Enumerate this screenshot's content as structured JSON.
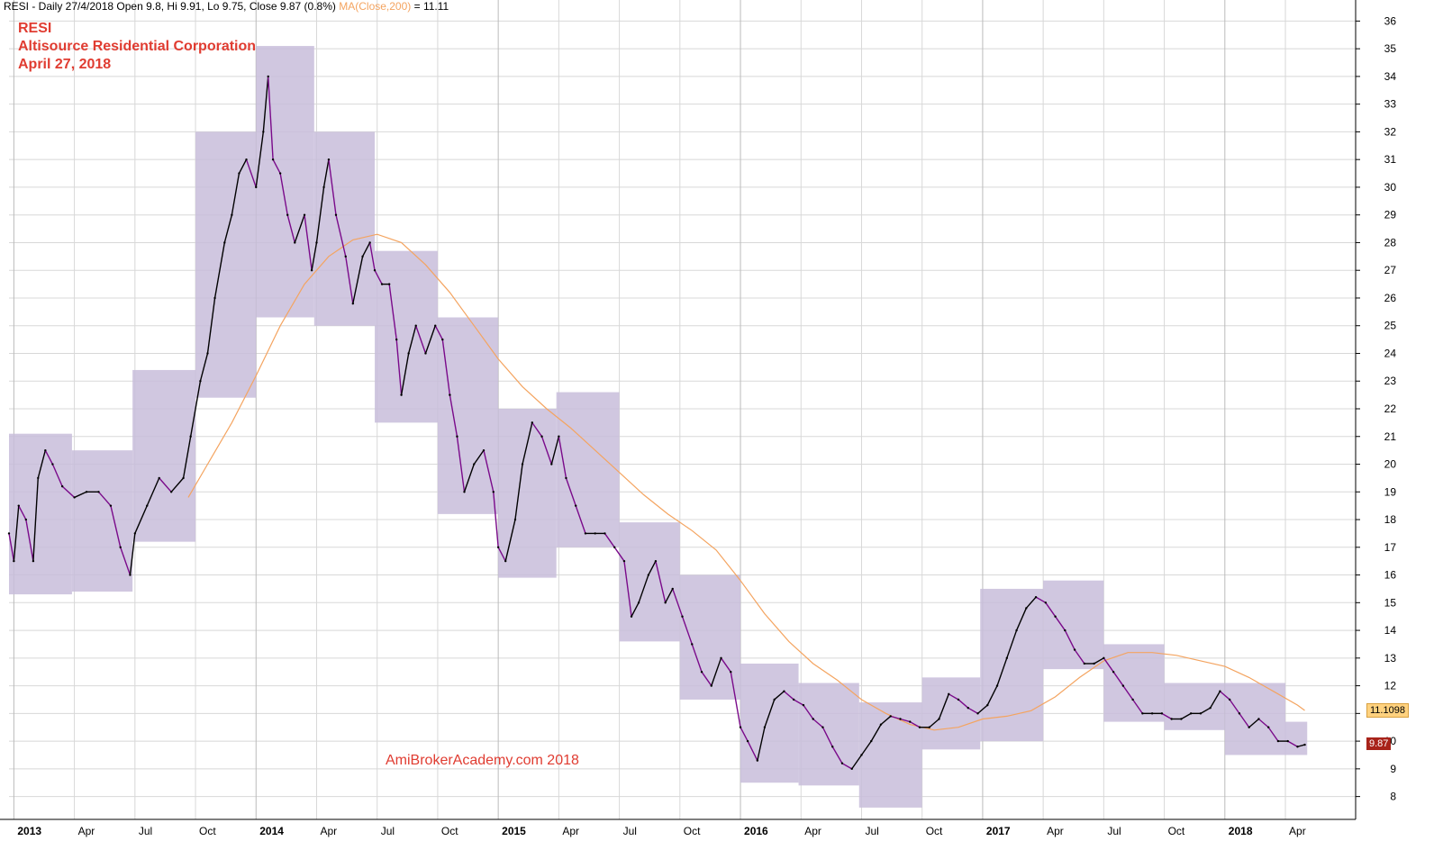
{
  "header": {
    "prefix": "RESI - Daily 27/4/2018 Open 9.8, Hi 9.91, Lo 9.75, Close 9.87 (0.8%)",
    "ma_label": "MA(Close,200)",
    "ma_value": "= 11.11"
  },
  "title": {
    "ticker": "RESI",
    "company": "Altisource Residential Corporation",
    "date": "April 27, 2018"
  },
  "watermark": "AmiBrokerAcademy.com  2018",
  "tags": {
    "ma": "11.1098",
    "close": "9.87"
  },
  "colors": {
    "boxes": "#c8bddb",
    "down_price": "#7a0a8a",
    "up_price": "#000000",
    "ma_line": "#f4a460",
    "grid": "#d8d8d8"
  },
  "chart_data": {
    "type": "line",
    "y_ticks": [
      8,
      9,
      10,
      11,
      12,
      13,
      14,
      15,
      16,
      17,
      18,
      19,
      20,
      21,
      22,
      23,
      24,
      25,
      26,
      27,
      28,
      29,
      30,
      31,
      32,
      33,
      34,
      35,
      36
    ],
    "ylim": [
      7.5,
      36.5
    ],
    "x_labels": [
      {
        "t": 0.0,
        "label": "2013",
        "bold": true
      },
      {
        "t": 0.25,
        "label": "Apr",
        "bold": false
      },
      {
        "t": 0.5,
        "label": "Jul",
        "bold": false
      },
      {
        "t": 0.75,
        "label": "Oct",
        "bold": false
      },
      {
        "t": 1.0,
        "label": "2014",
        "bold": true
      },
      {
        "t": 1.25,
        "label": "Apr",
        "bold": false
      },
      {
        "t": 1.5,
        "label": "Jul",
        "bold": false
      },
      {
        "t": 1.75,
        "label": "Oct",
        "bold": false
      },
      {
        "t": 2.0,
        "label": "2015",
        "bold": true
      },
      {
        "t": 2.25,
        "label": "Apr",
        "bold": false
      },
      {
        "t": 2.5,
        "label": "Jul",
        "bold": false
      },
      {
        "t": 2.75,
        "label": "Oct",
        "bold": false
      },
      {
        "t": 3.0,
        "label": "2016",
        "bold": true
      },
      {
        "t": 3.25,
        "label": "Apr",
        "bold": false
      },
      {
        "t": 3.5,
        "label": "Jul",
        "bold": false
      },
      {
        "t": 3.75,
        "label": "Oct",
        "bold": false
      },
      {
        "t": 4.0,
        "label": "2017",
        "bold": true
      },
      {
        "t": 4.25,
        "label": "Apr",
        "bold": false
      },
      {
        "t": 4.5,
        "label": "Jul",
        "bold": false
      },
      {
        "t": 4.75,
        "label": "Oct",
        "bold": false
      },
      {
        "t": 5.0,
        "label": "2018",
        "bold": true
      },
      {
        "t": 5.25,
        "label": "Apr",
        "bold": false
      }
    ],
    "boxes": [
      {
        "t0": -0.02,
        "t1": 0.24,
        "lo": 15.3,
        "hi": 21.1
      },
      {
        "t0": 0.24,
        "t1": 0.49,
        "lo": 15.4,
        "hi": 20.5
      },
      {
        "t0": 0.49,
        "t1": 0.75,
        "lo": 17.2,
        "hi": 23.4
      },
      {
        "t0": 0.75,
        "t1": 1.0,
        "lo": 22.4,
        "hi": 32.0
      },
      {
        "t0": 1.0,
        "t1": 1.24,
        "lo": 25.3,
        "hi": 35.1
      },
      {
        "t0": 1.24,
        "t1": 1.49,
        "lo": 25.0,
        "hi": 32.0
      },
      {
        "t0": 1.49,
        "t1": 1.75,
        "lo": 21.5,
        "hi": 27.7
      },
      {
        "t0": 1.75,
        "t1": 2.0,
        "lo": 18.2,
        "hi": 25.3
      },
      {
        "t0": 2.0,
        "t1": 2.24,
        "lo": 15.9,
        "hi": 22.0
      },
      {
        "t0": 2.24,
        "t1": 2.5,
        "lo": 17.0,
        "hi": 22.6
      },
      {
        "t0": 2.5,
        "t1": 2.75,
        "lo": 13.6,
        "hi": 17.9
      },
      {
        "t0": 2.75,
        "t1": 3.0,
        "lo": 11.5,
        "hi": 16.0
      },
      {
        "t0": 3.0,
        "t1": 3.24,
        "lo": 8.5,
        "hi": 12.8
      },
      {
        "t0": 3.24,
        "t1": 3.49,
        "lo": 8.4,
        "hi": 12.1
      },
      {
        "t0": 3.49,
        "t1": 3.75,
        "lo": 7.6,
        "hi": 11.4
      },
      {
        "t0": 3.75,
        "t1": 3.99,
        "lo": 9.7,
        "hi": 12.3
      },
      {
        "t0": 3.99,
        "t1": 4.25,
        "lo": 10.0,
        "hi": 15.5
      },
      {
        "t0": 4.25,
        "t1": 4.5,
        "lo": 12.6,
        "hi": 15.8
      },
      {
        "t0": 4.5,
        "t1": 4.75,
        "lo": 10.7,
        "hi": 13.5
      },
      {
        "t0": 4.75,
        "t1": 5.0,
        "lo": 10.4,
        "hi": 12.1
      },
      {
        "t0": 5.0,
        "t1": 5.25,
        "lo": 9.5,
        "hi": 12.1
      },
      {
        "t0": 5.25,
        "t1": 5.34,
        "lo": 9.5,
        "hi": 10.7
      }
    ],
    "price": [
      [
        -0.02,
        17.5
      ],
      [
        0.0,
        16.5
      ],
      [
        0.02,
        18.5
      ],
      [
        0.05,
        18.0
      ],
      [
        0.08,
        16.5
      ],
      [
        0.1,
        19.5
      ],
      [
        0.13,
        20.5
      ],
      [
        0.16,
        20.0
      ],
      [
        0.2,
        19.2
      ],
      [
        0.25,
        18.8
      ],
      [
        0.3,
        19.0
      ],
      [
        0.35,
        19.0
      ],
      [
        0.4,
        18.5
      ],
      [
        0.44,
        17.0
      ],
      [
        0.48,
        16.0
      ],
      [
        0.5,
        17.5
      ],
      [
        0.55,
        18.5
      ],
      [
        0.6,
        19.5
      ],
      [
        0.65,
        19.0
      ],
      [
        0.7,
        19.5
      ],
      [
        0.73,
        21.0
      ],
      [
        0.77,
        23.0
      ],
      [
        0.8,
        24.0
      ],
      [
        0.83,
        26.0
      ],
      [
        0.87,
        28.0
      ],
      [
        0.9,
        29.0
      ],
      [
        0.93,
        30.5
      ],
      [
        0.96,
        31.0
      ],
      [
        1.0,
        30.0
      ],
      [
        1.03,
        32.0
      ],
      [
        1.05,
        34.0
      ],
      [
        1.07,
        31.0
      ],
      [
        1.1,
        30.5
      ],
      [
        1.13,
        29.0
      ],
      [
        1.16,
        28.0
      ],
      [
        1.2,
        29.0
      ],
      [
        1.23,
        27.0
      ],
      [
        1.25,
        28.0
      ],
      [
        1.28,
        30.0
      ],
      [
        1.3,
        31.0
      ],
      [
        1.33,
        29.0
      ],
      [
        1.37,
        27.5
      ],
      [
        1.4,
        25.8
      ],
      [
        1.44,
        27.5
      ],
      [
        1.47,
        28.0
      ],
      [
        1.49,
        27.0
      ],
      [
        1.52,
        26.5
      ],
      [
        1.55,
        26.5
      ],
      [
        1.58,
        24.5
      ],
      [
        1.6,
        22.5
      ],
      [
        1.63,
        24.0
      ],
      [
        1.66,
        25.0
      ],
      [
        1.7,
        24.0
      ],
      [
        1.74,
        25.0
      ],
      [
        1.77,
        24.5
      ],
      [
        1.8,
        22.5
      ],
      [
        1.83,
        21.0
      ],
      [
        1.86,
        19.0
      ],
      [
        1.9,
        20.0
      ],
      [
        1.94,
        20.5
      ],
      [
        1.98,
        19.0
      ],
      [
        2.0,
        17.0
      ],
      [
        2.03,
        16.5
      ],
      [
        2.07,
        18.0
      ],
      [
        2.1,
        20.0
      ],
      [
        2.14,
        21.5
      ],
      [
        2.18,
        21.0
      ],
      [
        2.22,
        20.0
      ],
      [
        2.25,
        21.0
      ],
      [
        2.28,
        19.5
      ],
      [
        2.32,
        18.5
      ],
      [
        2.36,
        17.5
      ],
      [
        2.4,
        17.5
      ],
      [
        2.44,
        17.5
      ],
      [
        2.48,
        17.0
      ],
      [
        2.52,
        16.5
      ],
      [
        2.55,
        14.5
      ],
      [
        2.58,
        15.0
      ],
      [
        2.62,
        16.0
      ],
      [
        2.65,
        16.5
      ],
      [
        2.69,
        15.0
      ],
      [
        2.72,
        15.5
      ],
      [
        2.76,
        14.5
      ],
      [
        2.8,
        13.5
      ],
      [
        2.84,
        12.5
      ],
      [
        2.88,
        12.0
      ],
      [
        2.92,
        13.0
      ],
      [
        2.96,
        12.5
      ],
      [
        3.0,
        10.5
      ],
      [
        3.03,
        10.0
      ],
      [
        3.07,
        9.3
      ],
      [
        3.1,
        10.5
      ],
      [
        3.14,
        11.5
      ],
      [
        3.18,
        11.8
      ],
      [
        3.22,
        11.5
      ],
      [
        3.26,
        11.3
      ],
      [
        3.3,
        10.8
      ],
      [
        3.34,
        10.5
      ],
      [
        3.38,
        9.8
      ],
      [
        3.42,
        9.2
      ],
      [
        3.46,
        9.0
      ],
      [
        3.5,
        9.5
      ],
      [
        3.54,
        10.0
      ],
      [
        3.58,
        10.6
      ],
      [
        3.62,
        10.9
      ],
      [
        3.66,
        10.8
      ],
      [
        3.7,
        10.7
      ],
      [
        3.74,
        10.5
      ],
      [
        3.78,
        10.5
      ],
      [
        3.82,
        10.8
      ],
      [
        3.86,
        11.7
      ],
      [
        3.9,
        11.5
      ],
      [
        3.94,
        11.2
      ],
      [
        3.98,
        11.0
      ],
      [
        4.02,
        11.3
      ],
      [
        4.06,
        12.0
      ],
      [
        4.1,
        13.0
      ],
      [
        4.14,
        14.0
      ],
      [
        4.18,
        14.8
      ],
      [
        4.22,
        15.2
      ],
      [
        4.26,
        15.0
      ],
      [
        4.3,
        14.5
      ],
      [
        4.34,
        14.0
      ],
      [
        4.38,
        13.3
      ],
      [
        4.42,
        12.8
      ],
      [
        4.46,
        12.8
      ],
      [
        4.5,
        13.0
      ],
      [
        4.54,
        12.5
      ],
      [
        4.58,
        12.0
      ],
      [
        4.62,
        11.5
      ],
      [
        4.66,
        11.0
      ],
      [
        4.7,
        11.0
      ],
      [
        4.74,
        11.0
      ],
      [
        4.78,
        10.8
      ],
      [
        4.82,
        10.8
      ],
      [
        4.86,
        11.0
      ],
      [
        4.9,
        11.0
      ],
      [
        4.94,
        11.2
      ],
      [
        4.98,
        11.8
      ],
      [
        5.02,
        11.5
      ],
      [
        5.06,
        11.0
      ],
      [
        5.1,
        10.5
      ],
      [
        5.14,
        10.8
      ],
      [
        5.18,
        10.5
      ],
      [
        5.22,
        10.0
      ],
      [
        5.26,
        10.0
      ],
      [
        5.3,
        9.8
      ],
      [
        5.33,
        9.87
      ]
    ],
    "ma": [
      [
        0.72,
        18.8
      ],
      [
        0.8,
        20.0
      ],
      [
        0.9,
        21.5
      ],
      [
        1.0,
        23.2
      ],
      [
        1.1,
        25.0
      ],
      [
        1.2,
        26.5
      ],
      [
        1.3,
        27.5
      ],
      [
        1.4,
        28.1
      ],
      [
        1.5,
        28.3
      ],
      [
        1.6,
        28.0
      ],
      [
        1.7,
        27.2
      ],
      [
        1.8,
        26.2
      ],
      [
        1.9,
        25.0
      ],
      [
        2.0,
        23.8
      ],
      [
        2.1,
        22.8
      ],
      [
        2.2,
        22.0
      ],
      [
        2.3,
        21.3
      ],
      [
        2.4,
        20.5
      ],
      [
        2.5,
        19.7
      ],
      [
        2.6,
        18.9
      ],
      [
        2.7,
        18.2
      ],
      [
        2.8,
        17.6
      ],
      [
        2.9,
        16.9
      ],
      [
        3.0,
        15.8
      ],
      [
        3.1,
        14.6
      ],
      [
        3.2,
        13.6
      ],
      [
        3.3,
        12.8
      ],
      [
        3.4,
        12.2
      ],
      [
        3.5,
        11.5
      ],
      [
        3.6,
        11.0
      ],
      [
        3.7,
        10.6
      ],
      [
        3.8,
        10.4
      ],
      [
        3.9,
        10.5
      ],
      [
        4.0,
        10.8
      ],
      [
        4.1,
        10.9
      ],
      [
        4.2,
        11.1
      ],
      [
        4.3,
        11.6
      ],
      [
        4.4,
        12.3
      ],
      [
        4.5,
        12.9
      ],
      [
        4.6,
        13.2
      ],
      [
        4.7,
        13.2
      ],
      [
        4.8,
        13.1
      ],
      [
        4.9,
        12.9
      ],
      [
        5.0,
        12.7
      ],
      [
        5.1,
        12.3
      ],
      [
        5.2,
        11.8
      ],
      [
        5.3,
        11.3
      ],
      [
        5.33,
        11.11
      ]
    ]
  }
}
